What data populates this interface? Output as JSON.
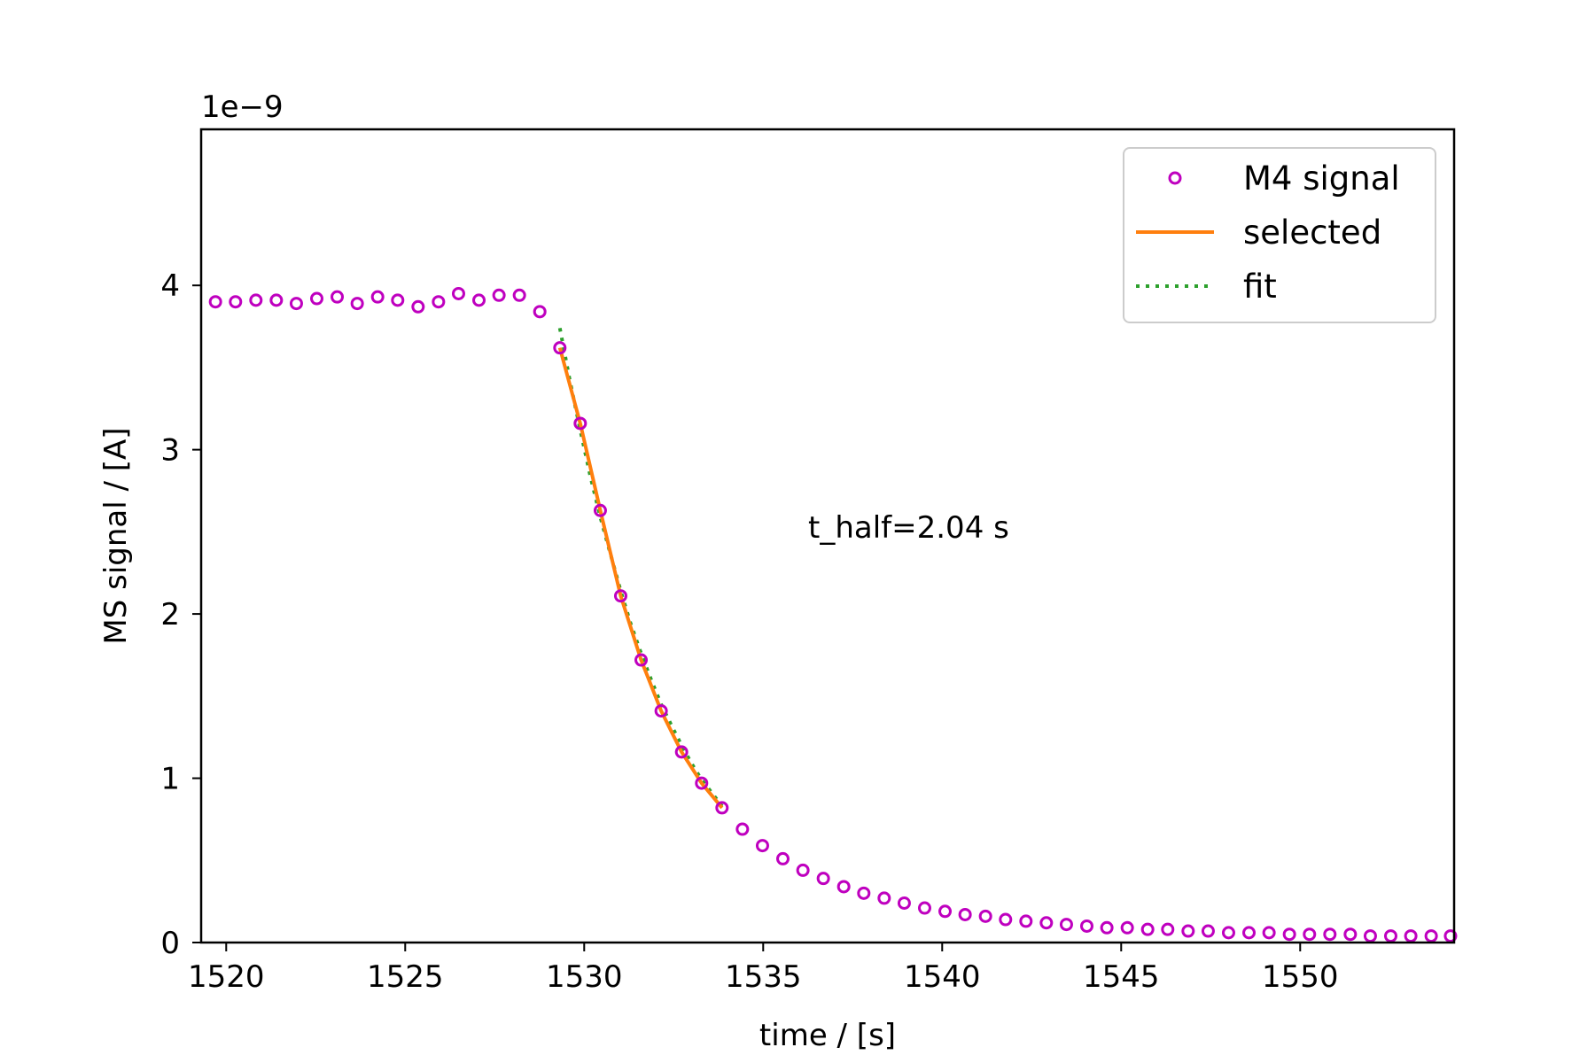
{
  "chart_data": {
    "type": "scatter",
    "xlabel": "time / [s]",
    "ylabel": "MS signal / [A]",
    "y_offset_label": "1e−9",
    "y_scale": 1e-09,
    "xlim": [
      1519.3,
      1554.3
    ],
    "ylim": [
      0,
      4.95
    ],
    "x_ticks": [
      1520,
      1525,
      1530,
      1535,
      1540,
      1545,
      1550
    ],
    "x_tick_labels": [
      "1520",
      "1525",
      "1530",
      "1535",
      "1540",
      "1545",
      "1550"
    ],
    "y_ticks": [
      0,
      1,
      2,
      3,
      4
    ],
    "y_tick_labels": [
      "0",
      "1",
      "2",
      "3",
      "4"
    ],
    "grid": false,
    "legend_position": "top-right",
    "annotation": "t_half=2.04 s",
    "colors": {
      "signal": "#bf00bf",
      "selected": "#ff7f0e",
      "fit": "#2ca02c"
    },
    "series": [
      {
        "name": "M4 signal",
        "style": "open-circle-markers",
        "x": [
          1519.7,
          1520.26,
          1520.83,
          1521.4,
          1521.96,
          1522.53,
          1523.1,
          1523.66,
          1524.23,
          1524.79,
          1525.36,
          1525.93,
          1526.49,
          1527.06,
          1527.62,
          1528.19,
          1528.76,
          1529.32,
          1529.89,
          1530.45,
          1531.02,
          1531.59,
          1532.15,
          1532.72,
          1533.28,
          1533.85,
          1534.42,
          1534.98,
          1535.55,
          1536.11,
          1536.68,
          1537.25,
          1537.81,
          1538.38,
          1538.94,
          1539.51,
          1540.08,
          1540.64,
          1541.21,
          1541.77,
          1542.34,
          1542.91,
          1543.47,
          1544.04,
          1544.6,
          1545.17,
          1545.74,
          1546.3,
          1546.87,
          1547.43,
          1548.0,
          1548.57,
          1549.13,
          1549.7,
          1550.26,
          1550.83,
          1551.4,
          1551.96,
          1552.53,
          1553.09,
          1553.66,
          1554.2
        ],
        "values": [
          3.9,
          3.9,
          3.91,
          3.91,
          3.89,
          3.92,
          3.93,
          3.89,
          3.93,
          3.91,
          3.87,
          3.9,
          3.95,
          3.91,
          3.94,
          3.94,
          3.84,
          3.62,
          3.16,
          2.63,
          2.11,
          1.72,
          1.41,
          1.16,
          0.97,
          0.82,
          0.69,
          0.59,
          0.51,
          0.44,
          0.39,
          0.34,
          0.3,
          0.27,
          0.24,
          0.21,
          0.19,
          0.17,
          0.16,
          0.14,
          0.13,
          0.12,
          0.11,
          0.1,
          0.09,
          0.09,
          0.08,
          0.08,
          0.07,
          0.07,
          0.06,
          0.06,
          0.06,
          0.05,
          0.05,
          0.05,
          0.05,
          0.04,
          0.04,
          0.04,
          0.04,
          0.04
        ]
      },
      {
        "name": "selected",
        "style": "solid-line",
        "x": [
          1529.32,
          1529.89,
          1530.45,
          1531.02,
          1531.59,
          1532.15,
          1532.72,
          1533.28,
          1533.85
        ],
        "values": [
          3.62,
          3.16,
          2.63,
          2.11,
          1.72,
          1.41,
          1.16,
          0.97,
          0.82
        ]
      },
      {
        "name": "fit",
        "style": "dotted-line",
        "x": [
          1529.32,
          1529.6,
          1529.89,
          1530.17,
          1530.45,
          1530.74,
          1531.02,
          1531.3,
          1531.59,
          1531.87,
          1532.15,
          1532.44,
          1532.72,
          1533.0,
          1533.28,
          1533.57,
          1533.85
        ],
        "values": [
          3.74,
          3.42,
          3.12,
          2.84,
          2.59,
          2.36,
          2.14,
          1.94,
          1.76,
          1.6,
          1.45,
          1.32,
          1.2,
          1.09,
          0.99,
          0.91,
          0.83
        ]
      }
    ]
  }
}
